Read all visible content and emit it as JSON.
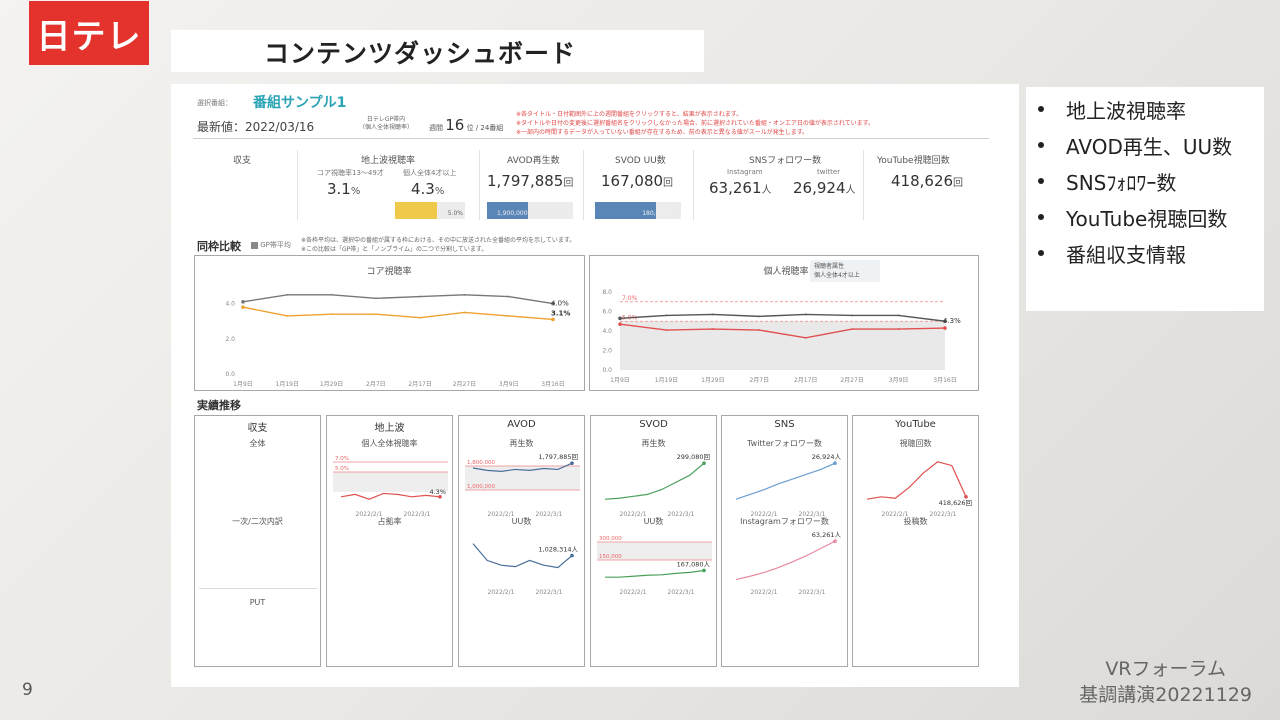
{
  "slide": {
    "logo": "日テレ",
    "title": "コンテンツダッシュボード",
    "page_number": "9",
    "forum_line1": "VRフォーラム",
    "forum_line2": "基調講演20221129"
  },
  "features": [
    "地上波視聴率",
    "AVOD再生、UU数",
    "SNSﾌｫﾛﾜｰ数",
    "YouTube視聴回数",
    "番組収支情報"
  ],
  "header": {
    "select_label": "選択番組：",
    "program_name": "番組サンプル1",
    "latest_label": "最新値：",
    "latest_date": "2022/03/16",
    "rank_caption1": "日テレGP帯内",
    "rank_caption2": "（個人全体視聴率）",
    "rank_prefix": "週間",
    "rank_value": "16",
    "rank_suffix": "位 / 24番組",
    "notes": [
      "※各タイトル・日付範囲外に上の週間番組をクリックすると、結果が表示されます。",
      "※タイトルや日付の変更後に選択番組名をクリックしなかった場合、前に選択されていた番組・オンエア日の値が表示されています。",
      "※一部内の時間するデータが入っていない番組が存在するため、前の表示と異なる値がスールが発生します。"
    ]
  },
  "kpis": {
    "income": {
      "label": "収支"
    },
    "terrestrial": {
      "label": "地上波視聴率",
      "core_label": "コア視聴率13〜49才",
      "core_value": "3.1",
      "individual_label": "個人全体4才以上",
      "individual_value": "4.3",
      "unit": "%",
      "bar_value": "5.0%",
      "bar_fill": 0.6,
      "bar_color": "#f0c94a"
    },
    "avod": {
      "label": "AVOD再生数",
      "value": "1,797,885",
      "unit": "回",
      "bar_value": "1,900,000",
      "bar_fill": 0.48,
      "bar_color": "#5a86b7"
    },
    "svod": {
      "label": "SVOD UU数",
      "value": "167,080",
      "unit": "回",
      "bar_value": "180,000",
      "bar_fill": 0.71,
      "bar_color": "#5a86b7"
    },
    "sns": {
      "label": "SNSフォロワー数",
      "instagram_label": "Instagram",
      "instagram_value": "63,261",
      "twitter_label": "twitter",
      "twitter_value": "26,924",
      "unit": "人"
    },
    "youtube": {
      "label": "YouTube視聴回数",
      "value": "418,626",
      "unit": "回"
    }
  },
  "comparison": {
    "title": "同枠比較",
    "legend": "GP帯平均",
    "note1": "※各枠平均は、選択中の番組が属する枠における、その中に放送された全番組の平均を示しています。",
    "note2": "※この比較は「GP帯」と「ノンプライム」の二つで分割しています。",
    "core_chart": {
      "title": "コア視聴率",
      "end_label_gray": "4.0%",
      "end_label_orange": "3.1%"
    },
    "individual_chart": {
      "title": "個人視聴率",
      "legend_line1": "視聴者属性",
      "legend_line2": "個人全体4才以上",
      "ref_label1": "7.0%",
      "ref_label2": "5.0%",
      "end_label": "4.3%"
    }
  },
  "chart_data": [
    {
      "type": "line",
      "title": "コア視聴率",
      "x": [
        "1月9日",
        "1月19日",
        "1月29日",
        "2月7日",
        "2月17日",
        "2月27日",
        "3月9日",
        "3月16日"
      ],
      "series": [
        {
          "values": [
            4.1,
            4.5,
            4.5,
            4.3,
            4.4,
            4.5,
            4.4,
            4.0
          ],
          "color": "#777777"
        },
        {
          "values": [
            3.8,
            3.3,
            3.4,
            3.4,
            3.2,
            3.5,
            3.3,
            3.1
          ],
          "color": "#f0a030"
        }
      ],
      "ylim": [
        0.0,
        5.0
      ],
      "yticks": [
        "0.0",
        "2.0",
        "4.0"
      ]
    },
    {
      "type": "line",
      "title": "個人視聴率",
      "x": [
        "1月9日",
        "1月19日",
        "1月29日",
        "2月7日",
        "2月17日",
        "2月27日",
        "3月9日",
        "3月16日"
      ],
      "series": [
        {
          "values": [
            5.3,
            5.6,
            5.7,
            5.5,
            5.7,
            5.6,
            5.6,
            5.0
          ],
          "color": "#555555"
        },
        {
          "values": [
            4.7,
            4.1,
            4.2,
            4.1,
            3.3,
            4.2,
            4.2,
            4.3
          ],
          "color": "#e05050"
        }
      ],
      "ylim": [
        0.0,
        8.0
      ],
      "yticks": [
        "0.0",
        "2.0",
        "4.0",
        "6.0",
        "8.0"
      ]
    }
  ],
  "trends": {
    "title": "実績推移",
    "income": {
      "title": "収支",
      "sub": "全体",
      "mid": "一次/二次内訳",
      "bottom": "PUT"
    },
    "terrestrial": {
      "title": "地上波",
      "sub": "個人全体視聴率",
      "ref1": "7.0%",
      "ref2": "5.0%",
      "end": "4.3%",
      "mid": "占拠率",
      "dates": [
        "2022/2/1",
        "2022/3/1"
      ]
    },
    "avod": {
      "title": "AVOD",
      "sub": "再生数",
      "ref1": "1,800,000",
      "ref2": "1,000,000",
      "end": "1,797,885回",
      "uu_title": "UU数",
      "uu_end": "1,028,314人",
      "dates": [
        "2022/2/1",
        "2022/3/1"
      ]
    },
    "svod": {
      "title": "SVOD",
      "sub": "再生数",
      "end": "299,080回",
      "uu_title": "UU数",
      "ref1": "300,000",
      "ref2": "150,000",
      "uu_end": "167,080人",
      "dates": [
        "2022/2/1",
        "2022/3/1"
      ]
    },
    "sns": {
      "title": "SNS",
      "sub": "Twitterフォロワー数",
      "end": "26,924人",
      "ig_title": "Instagramフォロワー数",
      "ig_end": "63,261人",
      "dates": [
        "2022/2/1",
        "2022/3/1"
      ]
    },
    "youtube": {
      "title": "YouTube",
      "sub": "視聴回数",
      "end": "418,626回",
      "mid": "投稿数",
      "dates": [
        "2022/2/1",
        "2022/3/1"
      ]
    }
  }
}
